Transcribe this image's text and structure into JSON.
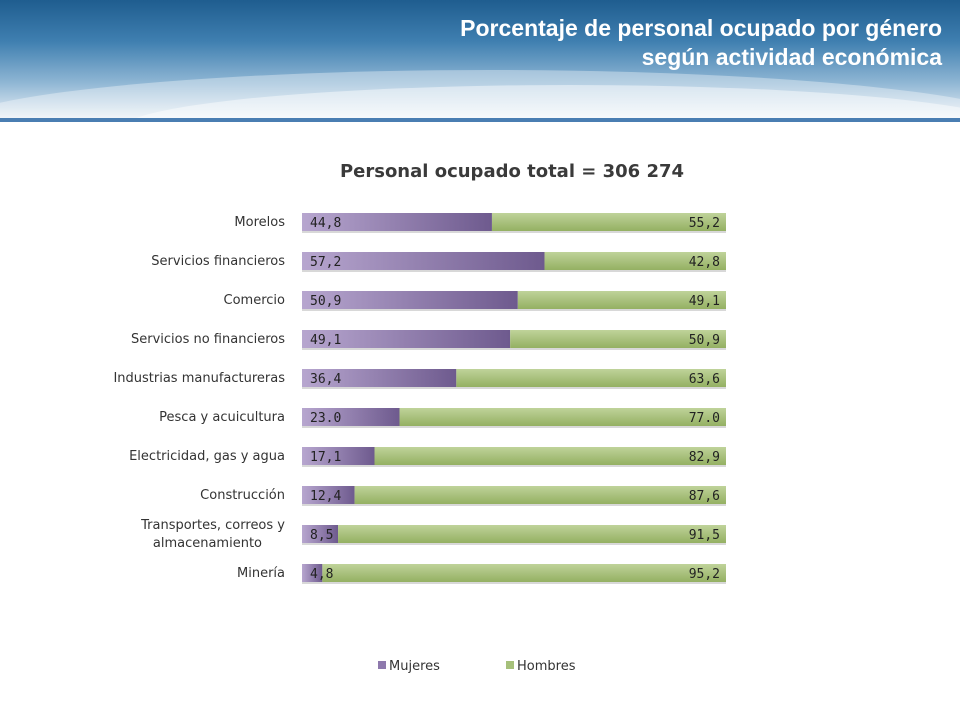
{
  "page": {
    "title": "Porcentaje de personal ocupado por género\nsegún actividad económica"
  },
  "chart_data": {
    "type": "bar",
    "orientation": "horizontal",
    "stacked": "100%",
    "title": "Personal ocupado total = 306 274",
    "categories": [
      "Morelos",
      "Servicios financieros",
      "Comercio",
      "Servicios no financieros",
      "Industrias manufactureras",
      "Pesca y acuicultura",
      "Electricidad, gas y agua",
      "Construcción",
      "Transportes, correos y almacenamiento",
      "Minería"
    ],
    "series": [
      {
        "name": "Mujeres",
        "color": "#8e79ad",
        "values": [
          44.8,
          57.2,
          50.9,
          49.1,
          36.4,
          23.0,
          17.1,
          12.4,
          8.5,
          4.8
        ],
        "labels": [
          "44,8",
          "57,2",
          "50,9",
          "49,1",
          "36,4",
          "23.0",
          "17,1",
          "12,4",
          "8,5",
          "4,8"
        ]
      },
      {
        "name": "Hombres",
        "color": "#a6c07a",
        "values": [
          55.2,
          42.8,
          49.1,
          50.9,
          63.6,
          77.0,
          82.9,
          87.6,
          91.5,
          95.2
        ],
        "labels": [
          "55,2",
          "42,8",
          "49,1",
          "50,9",
          "63,6",
          "77.0",
          "82,9",
          "87,6",
          "91,5",
          "95,2"
        ]
      }
    ],
    "xlim": [
      0,
      100
    ],
    "legend_position": "bottom",
    "grid": false
  }
}
